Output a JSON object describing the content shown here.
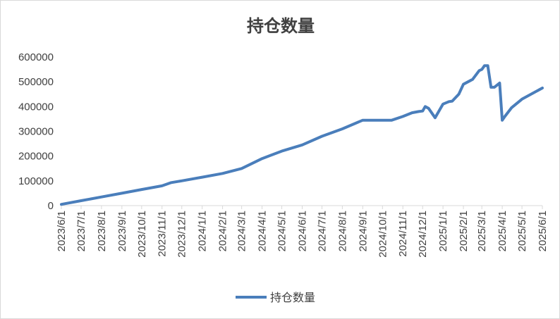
{
  "chart_data": {
    "type": "line",
    "title": "持仓数量",
    "xlabel": "",
    "ylabel": "",
    "ylim": [
      0,
      600000
    ],
    "yticks": [
      "0",
      "100000",
      "200000",
      "300000",
      "400000",
      "500000",
      "600000"
    ],
    "xticks": [
      "2023/6/1",
      "2023/7/1",
      "2023/8/1",
      "2023/9/1",
      "2023/10/1",
      "2023/11/1",
      "2023/12/1",
      "2024/1/1",
      "2024/2/1",
      "2024/3/1",
      "2024/4/1",
      "2024/5/1",
      "2024/6/1",
      "2024/7/1",
      "2024/8/1",
      "2024/9/1",
      "2024/10/1",
      "2024/11/1",
      "2024/12/1",
      "2025/1/1",
      "2025/2/1",
      "2025/3/1",
      "2025/4/1",
      "2025/5/1",
      "2025/6/1"
    ],
    "grid": false,
    "legend": "bottom",
    "color": "#4a7ebb",
    "series": [
      {
        "name": "持仓数量",
        "x": [
          "2023/6/1",
          "2023/7/1",
          "2023/8/1",
          "2023/9/1",
          "2023/10/1",
          "2023/11/1",
          "2023/11/15",
          "2023/12/1",
          "2024/1/1",
          "2024/2/1",
          "2024/3/1",
          "2024/4/1",
          "2024/5/1",
          "2024/6/1",
          "2024/7/1",
          "2024/8/1",
          "2024/9/1",
          "2024/10/1",
          "2024/10/15",
          "2024/11/1",
          "2024/11/15",
          "2024/11/25",
          "2024/12/1",
          "2024/12/5",
          "2024/12/10",
          "2024/12/20",
          "2025/1/1",
          "2025/1/10",
          "2025/1/15",
          "2025/1/25",
          "2025/2/1",
          "2025/2/15",
          "2025/2/25",
          "2025/3/1",
          "2025/3/5",
          "2025/3/10",
          "2025/3/15",
          "2025/3/20",
          "2025/3/28",
          "2025/4/1",
          "2025/4/5",
          "2025/4/15",
          "2025/5/1",
          "2025/6/1"
        ],
        "values": [
          5000,
          20000,
          35000,
          50000,
          65000,
          80000,
          93000,
          100000,
          115000,
          130000,
          150000,
          190000,
          220000,
          245000,
          280000,
          310000,
          345000,
          345000,
          345000,
          360000,
          375000,
          380000,
          382000,
          400000,
          393000,
          355000,
          410000,
          420000,
          422000,
          450000,
          490000,
          510000,
          545000,
          550000,
          565000,
          565000,
          478000,
          478000,
          495000,
          345000,
          360000,
          395000,
          430000,
          475000
        ]
      }
    ]
  }
}
